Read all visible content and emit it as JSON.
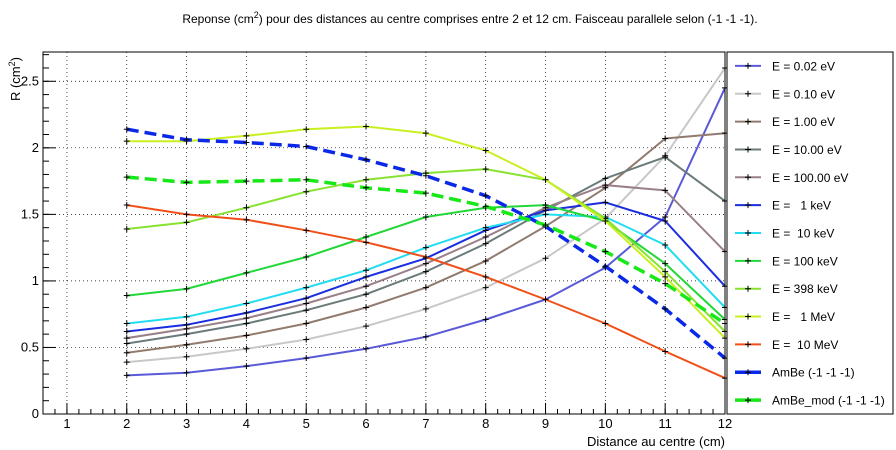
{
  "chart_data": {
    "type": "line",
    "title": "Reponse (cm²) pour des distances au centre comprises entre 2 et 12 cm. Faisceau parallele selon (-1 -1 -1).",
    "xlabel": "Distance au centre (cm)",
    "ylabel": "R (cm²)",
    "xlim": [
      0.6,
      12
    ],
    "ylim": [
      0,
      2.72
    ],
    "x_ticks": [
      "1",
      "2",
      "3",
      "4",
      "5",
      "6",
      "7",
      "8",
      "9",
      "10",
      "11",
      "12"
    ],
    "y_ticks": [
      "0",
      "0.5",
      "1",
      "1.5",
      "2",
      "2.5"
    ],
    "grid": true,
    "legend_position": "right",
    "x": [
      2,
      3,
      4,
      5,
      6,
      7,
      8,
      9,
      10,
      11,
      12
    ],
    "series": [
      {
        "name": "E = 0.02 eV",
        "color": "#5a5ad8",
        "dashed": false,
        "values": [
          0.29,
          0.31,
          0.36,
          0.42,
          0.49,
          0.58,
          0.71,
          0.86,
          1.1,
          1.48,
          2.45
        ]
      },
      {
        "name": "E = 0.10 eV",
        "color": "#c8c8c8",
        "dashed": false,
        "values": [
          0.39,
          0.43,
          0.49,
          0.56,
          0.66,
          0.79,
          0.95,
          1.17,
          1.47,
          1.94,
          2.6
        ]
      },
      {
        "name": "E = 1.00 eV",
        "color": "#927b6e",
        "dashed": false,
        "values": [
          0.46,
          0.52,
          0.59,
          0.68,
          0.8,
          0.95,
          1.15,
          1.41,
          1.7,
          2.07,
          2.11
        ]
      },
      {
        "name": "E = 10.00 eV",
        "color": "#6b7a7a",
        "dashed": false,
        "values": [
          0.53,
          0.6,
          0.68,
          0.78,
          0.9,
          1.07,
          1.28,
          1.53,
          1.77,
          1.93,
          1.6
        ]
      },
      {
        "name": "E = 100.00 eV",
        "color": "#9a8088",
        "dashed": false,
        "values": [
          0.57,
          0.64,
          0.72,
          0.83,
          0.96,
          1.13,
          1.33,
          1.55,
          1.72,
          1.68,
          1.22
        ]
      },
      {
        "name": "E =   1 keV",
        "color": "#1a2ee0",
        "dashed": false,
        "values": [
          0.62,
          0.67,
          0.76,
          0.87,
          1.03,
          1.17,
          1.38,
          1.53,
          1.59,
          1.45,
          0.96
        ]
      },
      {
        "name": "E =  10 keV",
        "color": "#22dcf0",
        "dashed": false,
        "values": [
          0.68,
          0.73,
          0.83,
          0.95,
          1.08,
          1.25,
          1.4,
          1.5,
          1.48,
          1.27,
          0.8
        ]
      },
      {
        "name": "E = 100 keV",
        "color": "#22d838",
        "dashed": false,
        "values": [
          0.89,
          0.94,
          1.06,
          1.18,
          1.33,
          1.48,
          1.55,
          1.57,
          1.45,
          1.13,
          0.71
        ]
      },
      {
        "name": "E = 398 keV",
        "color": "#88e230",
        "dashed": false,
        "values": [
          1.39,
          1.44,
          1.55,
          1.67,
          1.76,
          1.81,
          1.84,
          1.76,
          1.47,
          1.07,
          0.62
        ]
      },
      {
        "name": "E =   1 MeV",
        "color": "#c8f020",
        "dashed": false,
        "values": [
          2.05,
          2.05,
          2.09,
          2.14,
          2.16,
          2.11,
          1.98,
          1.76,
          1.45,
          1.03,
          0.57
        ]
      },
      {
        "name": "E =  10 MeV",
        "color": "#f05018",
        "dashed": false,
        "values": [
          1.57,
          1.5,
          1.46,
          1.38,
          1.29,
          1.18,
          1.03,
          0.86,
          0.68,
          0.47,
          0.27
        ]
      },
      {
        "name": "AmBe (-1 -1 -1)",
        "color": "#0a28e8",
        "dashed": true,
        "values": [
          2.14,
          2.06,
          2.04,
          2.01,
          1.91,
          1.79,
          1.64,
          1.41,
          1.11,
          0.79,
          0.42
        ]
      },
      {
        "name": "AmBe_mod (-1 -1 -1)",
        "color": "#18e818",
        "dashed": true,
        "values": [
          1.78,
          1.74,
          1.75,
          1.76,
          1.7,
          1.66,
          1.56,
          1.42,
          1.22,
          0.98,
          0.68
        ]
      }
    ]
  }
}
